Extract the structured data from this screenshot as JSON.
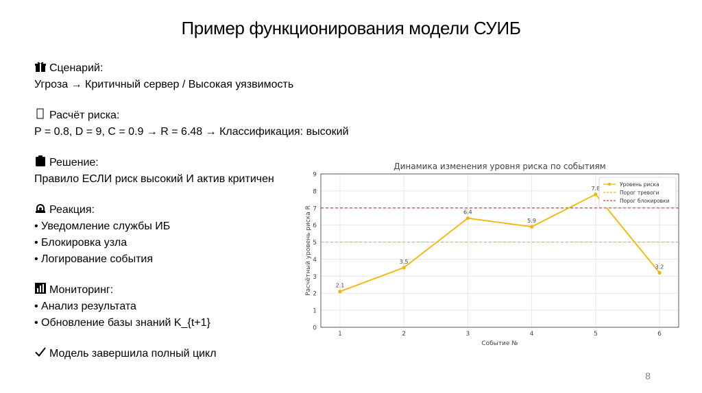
{
  "slide": {
    "title": "Пример функционирования модели СУИБ",
    "page_number": "8"
  },
  "sections": [
    {
      "icon": "gift-icon",
      "heading": "Сценарий:",
      "lines": [
        "Угроза → Критичный сервер / Высокая уязвимость"
      ]
    },
    {
      "icon": "missing-glyph-icon",
      "heading": "Расчёт риска:",
      "lines": [
        "P = 0.8, D = 9, C = 0.9 → R = 6.48 → Классификация: высокий"
      ]
    },
    {
      "icon": "clipboard-icon",
      "heading": "Решение:",
      "lines": [
        "Правило ЕСЛИ риск высокий И актив критичен"
      ]
    },
    {
      "icon": "alarm-icon",
      "heading": "Реакция:",
      "lines": [
        "• Уведомление службы ИБ",
        "• Блокировка узла",
        "• Логирование события"
      ]
    },
    {
      "icon": "bar-chart-icon",
      "heading": "Мониторинг:",
      "lines": [
        "• Анализ результата",
        "• Обновление базы знаний K_{t+1}"
      ]
    },
    {
      "icon": "checkmark-icon",
      "heading": "Модель завершила полный цикл",
      "lines": []
    }
  ],
  "chart_data": {
    "type": "line",
    "title": "Динамика изменения уровня риска по событиям",
    "xlabel": "Событие №",
    "ylabel": "Расчётный уровень риска R",
    "x": [
      1,
      2,
      3,
      4,
      5,
      6
    ],
    "xlim": [
      0.7,
      6.3
    ],
    "ylim": [
      0,
      9
    ],
    "yticks": [
      0,
      1,
      2,
      3,
      4,
      5,
      6,
      7,
      8,
      9
    ],
    "grid": true,
    "legend": "top-right",
    "series": [
      {
        "name": "Уровень риска",
        "values": [
          2.1,
          3.5,
          6.4,
          5.9,
          7.8,
          3.2
        ],
        "labels": [
          "2.1",
          "3.5",
          "6.4",
          "5.9",
          "7.8",
          "3.2"
        ],
        "color": "#f5b400"
      }
    ],
    "thresholds": [
      {
        "name": "Порог тревоги",
        "value": 5,
        "color": "#f5b400",
        "style": "dashed"
      },
      {
        "name": "Порог блокировки",
        "value": 7,
        "color": "#e53935",
        "style": "dashed"
      }
    ]
  }
}
